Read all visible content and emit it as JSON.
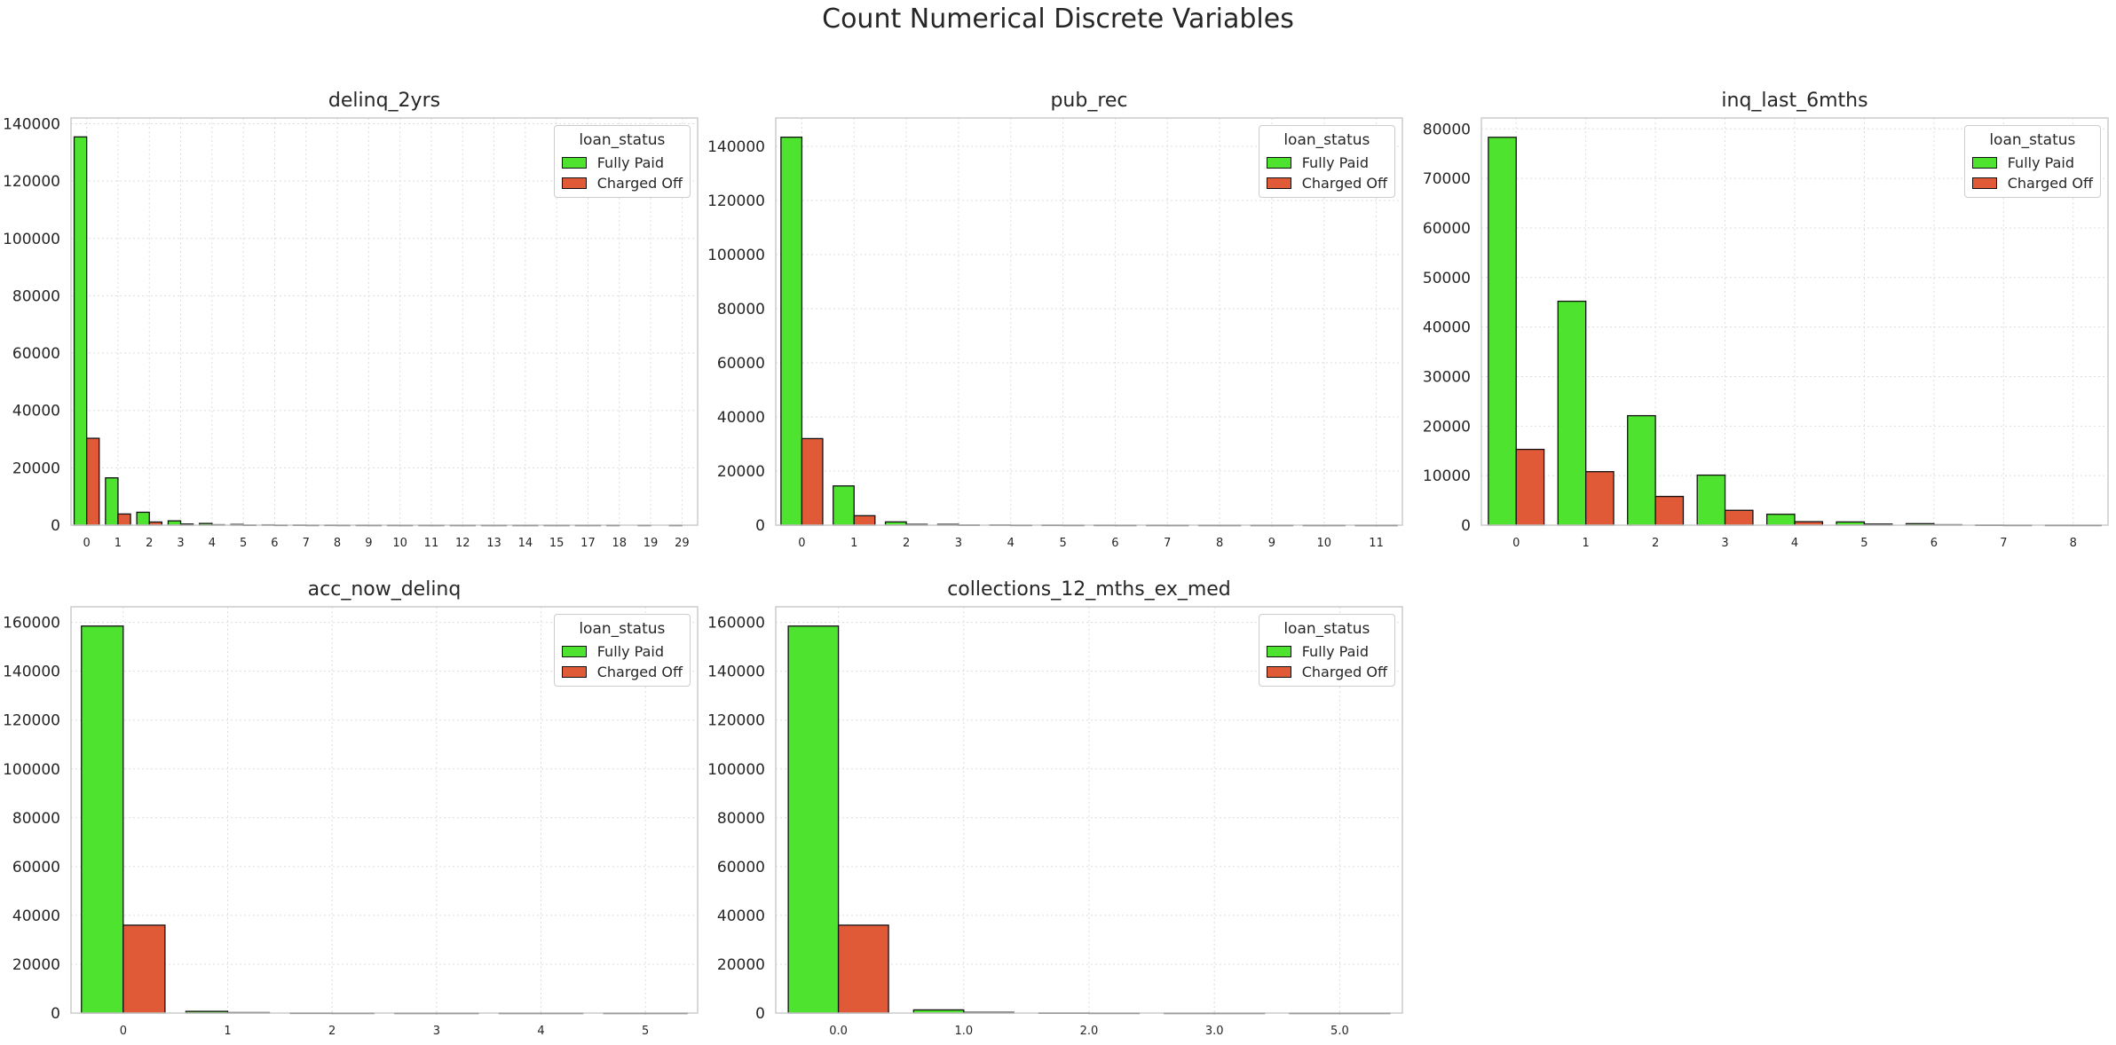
{
  "figure": {
    "title": "Count Numerical Discrete Variables"
  },
  "colors": {
    "Fully Paid": "#4ee32f",
    "Charged Off": "#e05a38",
    "grid": "#dddddd",
    "spine": "#cccccc"
  },
  "legend": {
    "title": "loan_status",
    "entries": [
      "Fully Paid",
      "Charged Off"
    ],
    "placement": "top-right"
  },
  "chart_data": [
    {
      "type": "bar",
      "title": "delinq_2yrs",
      "categories": [
        "0",
        "1",
        "2",
        "3",
        "4",
        "5",
        "6",
        "7",
        "8",
        "9",
        "10",
        "11",
        "12",
        "13",
        "14",
        "15",
        "17",
        "18",
        "19",
        "29"
      ],
      "series": [
        {
          "name": "Fully Paid",
          "values": [
            135400,
            16500,
            4500,
            1500,
            600,
            250,
            120,
            60,
            30,
            15,
            10,
            5,
            3,
            2,
            1,
            1,
            1,
            1,
            1,
            1
          ]
        },
        {
          "name": "Charged Off",
          "values": [
            30300,
            3900,
            1100,
            400,
            150,
            60,
            30,
            15,
            10,
            5,
            3,
            2,
            1,
            1,
            1,
            1,
            1,
            0,
            0,
            0
          ]
        }
      ],
      "yticks": [
        0,
        20000,
        40000,
        60000,
        80000,
        100000,
        120000,
        140000
      ],
      "ylim": [
        0,
        142000
      ],
      "grid": true
    },
    {
      "type": "bar",
      "title": "pub_rec",
      "categories": [
        "0",
        "1",
        "2",
        "3",
        "4",
        "5",
        "6",
        "7",
        "8",
        "9",
        "10",
        "11"
      ],
      "series": [
        {
          "name": "Fully Paid",
          "values": [
            143400,
            14500,
            1200,
            300,
            100,
            40,
            20,
            10,
            5,
            3,
            2,
            1
          ]
        },
        {
          "name": "Charged Off",
          "values": [
            32000,
            3500,
            300,
            80,
            25,
            10,
            5,
            3,
            1,
            1,
            1,
            1
          ]
        }
      ],
      "yticks": [
        0,
        20000,
        40000,
        60000,
        80000,
        100000,
        120000,
        140000
      ],
      "ylim": [
        0,
        150500
      ],
      "grid": true
    },
    {
      "type": "bar",
      "title": "inq_last_6mths",
      "categories": [
        "0",
        "1",
        "2",
        "3",
        "4",
        "5",
        "6",
        "7",
        "8"
      ],
      "series": [
        {
          "name": "Fully Paid",
          "values": [
            78300,
            45200,
            22100,
            10100,
            2200,
            650,
            300,
            30,
            10
          ]
        },
        {
          "name": "Charged Off",
          "values": [
            15300,
            10800,
            5800,
            3000,
            700,
            220,
            90,
            10,
            5
          ]
        }
      ],
      "yticks": [
        0,
        10000,
        20000,
        30000,
        40000,
        50000,
        60000,
        70000,
        80000
      ],
      "ylim": [
        0,
        82200
      ],
      "grid": true
    },
    {
      "type": "bar",
      "title": "acc_now_delinq",
      "categories": [
        "0",
        "1",
        "2",
        "3",
        "4",
        "5"
      ],
      "series": [
        {
          "name": "Fully Paid",
          "values": [
            158500,
            700,
            30,
            5,
            2,
            1
          ]
        },
        {
          "name": "Charged Off",
          "values": [
            36000,
            200,
            10,
            2,
            1,
            1
          ]
        }
      ],
      "yticks": [
        0,
        20000,
        40000,
        60000,
        80000,
        100000,
        120000,
        140000,
        160000
      ],
      "ylim": [
        0,
        166400
      ],
      "grid": true
    },
    {
      "type": "bar",
      "title": "collections_12_mths_ex_med",
      "categories": [
        "0.0",
        "1.0",
        "2.0",
        "3.0",
        "5.0"
      ],
      "series": [
        {
          "name": "Fully Paid",
          "values": [
            158500,
            1300,
            60,
            5,
            1
          ]
        },
        {
          "name": "Charged Off",
          "values": [
            36000,
            300,
            15,
            2,
            1
          ]
        }
      ],
      "yticks": [
        0,
        20000,
        40000,
        60000,
        80000,
        100000,
        120000,
        140000,
        160000
      ],
      "ylim": [
        0,
        166400
      ],
      "grid": true
    }
  ]
}
